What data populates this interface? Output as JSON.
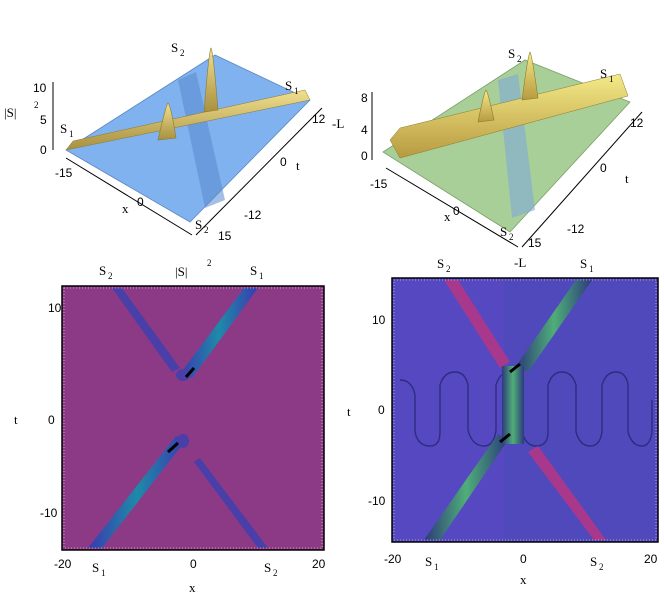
{
  "figure": {
    "panels": [
      {
        "id": "a",
        "kind": "3d-surface",
        "z_label": "|S|",
        "z_exp": "2",
        "z_ticks": [
          "10",
          "5",
          "0"
        ],
        "x_label": "x",
        "x_ticks": [
          "-15",
          "0",
          "15"
        ],
        "t_label": "t",
        "t_ticks": [
          "12",
          "0",
          "-12"
        ],
        "soliton_labels": [
          "S",
          "1",
          "S",
          "2",
          "S",
          "1",
          "S",
          "2"
        ],
        "surface_color": "#7fb2ee",
        "peak_color": "#d8c070"
      },
      {
        "id": "b",
        "kind": "3d-surface",
        "z_label": "-L",
        "z_ticks": [
          "8",
          "4",
          "0"
        ],
        "x_label": "x",
        "x_ticks": [
          "-15",
          "0",
          "15"
        ],
        "t_label": "t",
        "t_ticks": [
          "12",
          "0",
          "-12"
        ],
        "soliton_labels": [
          "S",
          "2",
          "S",
          "1",
          "S",
          "2"
        ],
        "surface_color": "#a9cf98",
        "peak_color": "#e0d070"
      },
      {
        "id": "c",
        "kind": "contour",
        "title": "|S|",
        "title_exp": "2",
        "x_label": "x",
        "y_label": "t",
        "x_ticks": [
          "-20",
          "0",
          "20"
        ],
        "y_ticks": [
          "10",
          "0",
          "-10"
        ],
        "top_labels": [
          "S",
          "2",
          "S",
          "1"
        ],
        "bottom_labels": [
          "S",
          "1",
          "S",
          "2"
        ],
        "background_color": "#8c3a86",
        "track_color": "#4a3fa8"
      },
      {
        "id": "d",
        "kind": "contour",
        "title": "-L",
        "x_label": "x",
        "y_label": "t",
        "x_ticks": [
          "-20",
          "0",
          "20"
        ],
        "y_ticks": [
          "10",
          "0",
          "-10"
        ],
        "top_labels": [
          "S",
          "2",
          "S",
          "1"
        ],
        "bottom_labels": [
          "S",
          "1",
          "S",
          "2"
        ],
        "background_color": "#5548c0",
        "track_color": "#2f7d4e"
      }
    ]
  }
}
